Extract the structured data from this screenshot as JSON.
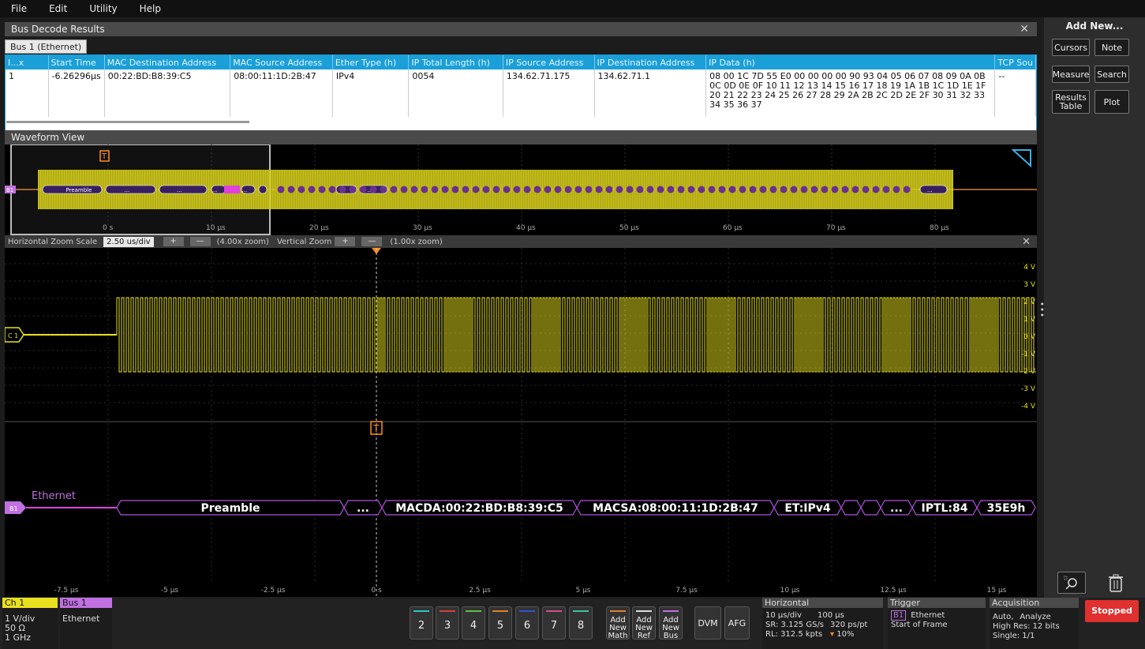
{
  "menu": [
    "File",
    "Edit",
    "Utility",
    "Help"
  ],
  "bus_decode": {
    "title": "Bus Decode Results",
    "tab": "Bus 1 (Ethernet)",
    "columns": [
      "I...x",
      "Start Time",
      "MAC Destination Address",
      "MAC Source Address",
      "Ether Type (h)",
      "IP Total Length (h)",
      "IP Source Address",
      "IP Destination Address",
      "IP Data (h)",
      "TCP Sou"
    ],
    "rows": [
      [
        "1",
        "-6.26296µs",
        "00:22:BD:B8:39:C5",
        "08:00:11:1D:2B:47",
        "IPv4",
        "0054",
        "134.62.71.175",
        "134.62.71.1",
        "08 00 1C 7D 55 E0 00 00 00 00 90 93 04 05 06 07 08 09 0A 0B 0C 0D 0E 0F 10 11 12 13 14 15 16 17 18 19 1A 1B 1C 1D 1E 1F 20 21 22 23 24 25 26 27 28 29 2A 2B 2C 2D 2E 2F 30 31 32 33 34 35 36 37",
        "--"
      ]
    ]
  },
  "waveform_view": {
    "title": "Waveform View",
    "overview_ticks": [
      "0 s",
      "10 µs",
      "20 µs",
      "30 µs",
      "40 µs",
      "50 µs",
      "60 µs",
      "70 µs",
      "80 µs"
    ],
    "overview_bus_label": "B1",
    "overview_packets": [
      "Preamble",
      "...",
      "...",
      "...",
      "...",
      "..."
    ],
    "zoom": {
      "h_label": "Horizontal Zoom Scale",
      "h_value": "2.50 us/div",
      "h_zoom": "(4.00x zoom)",
      "v_label": "Vertical Zoom",
      "v_zoom": "(1.00x zoom)",
      "plus": "+",
      "minus": "—"
    },
    "volt_labels": [
      "4 V",
      "3 V",
      "2 V",
      "1 V",
      "0 V",
      "-1 V",
      "-2 V",
      "-3 V",
      "-4 V"
    ],
    "ch_label": "C 1",
    "trigger_label": "T",
    "bus_name": "Ethernet",
    "bus_badge": "B1",
    "decode_fields": [
      "Preamble",
      "...",
      "MACDA:00:22:BD:B8:39:C5",
      "MACSA:08:00:11:1D:2B:47",
      "ET:IPv4",
      "...",
      "IPTL:84",
      "35E9h"
    ],
    "time_ticks": [
      "-7.5 µs",
      "-5 µs",
      "-2.5 µs",
      "0 s",
      "2.5 µs",
      "5 µs",
      "7.5 µs",
      "10 µs",
      "12.5 µs",
      "15 µs"
    ]
  },
  "right_panel": {
    "title": "Add New...",
    "buttons": [
      "Cursors",
      "Note",
      "Measure",
      "Search",
      "Results Table",
      "Plot"
    ],
    "zoom_icon": "zoom-icon",
    "trash_icon": "trash-icon"
  },
  "bottom": {
    "ch1": {
      "title": "Ch 1",
      "lines": [
        "1 V/div",
        "50 Ω",
        "1 GHz"
      ]
    },
    "bus1": {
      "title": "Bus 1",
      "lines": [
        "Ethernet"
      ]
    },
    "channels": [
      "2",
      "3",
      "4",
      "5",
      "6",
      "7",
      "8"
    ],
    "channel_colors": [
      "#2ec4c4",
      "#d04040",
      "#60c040",
      "#e08030",
      "#3050d0",
      "#d05090",
      "#40c0a0"
    ],
    "add_math": [
      "Add",
      "New",
      "Math"
    ],
    "add_ref": [
      "Add",
      "New",
      "Ref"
    ],
    "add_bus": [
      "Add",
      "New",
      "Bus"
    ],
    "dvm": "DVM",
    "afg": "AFG",
    "horizontal": {
      "title": "Horizontal",
      "r1a": "10 µs/div",
      "r1b": "100 µs",
      "r2a": "SR: 3.125 GS/s",
      "r2b": "320 ps/pt",
      "r3a": "RL: 312.5 kpts",
      "r3b": "10%"
    },
    "trigger": {
      "title": "Trigger",
      "badge": "B1",
      "source": "Ethernet",
      "type": "Start of Frame"
    },
    "acquisition": {
      "title": "Acquisition",
      "r1a": "Auto,",
      "r1b": "Analyze",
      "r2": "High Res: 12 bits",
      "r3": "Single: 1/1"
    },
    "status": "Stopped"
  },
  "colors": {
    "ch1": "#e8e020",
    "bus": "#e040e0",
    "accent": "#1a9fd8",
    "stop": "#e03030"
  }
}
